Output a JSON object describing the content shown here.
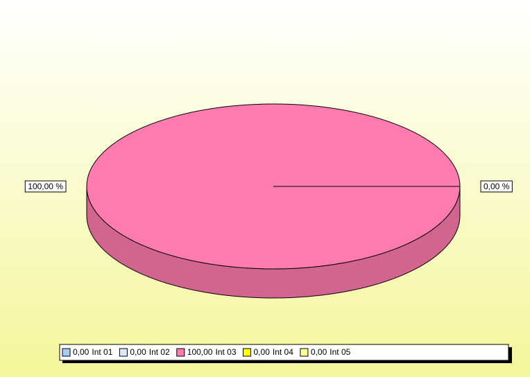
{
  "chart_data": {
    "type": "pie",
    "categories": [
      "Int 01",
      "Int 02",
      "Int 03",
      "Int 04",
      "Int 05"
    ],
    "values": [
      0,
      0,
      100,
      0,
      0
    ],
    "value_labels": [
      "0,00",
      "0,00",
      "100,00",
      "0,00",
      "0,00"
    ],
    "data_labels": [
      null,
      null,
      "100,00 %",
      null,
      "0,00 %"
    ],
    "colors": [
      "#a6caf0",
      "#dde8f8",
      "#ff7bb0",
      "#ffff00",
      "#ffff99"
    ],
    "legend": "bottom"
  }
}
